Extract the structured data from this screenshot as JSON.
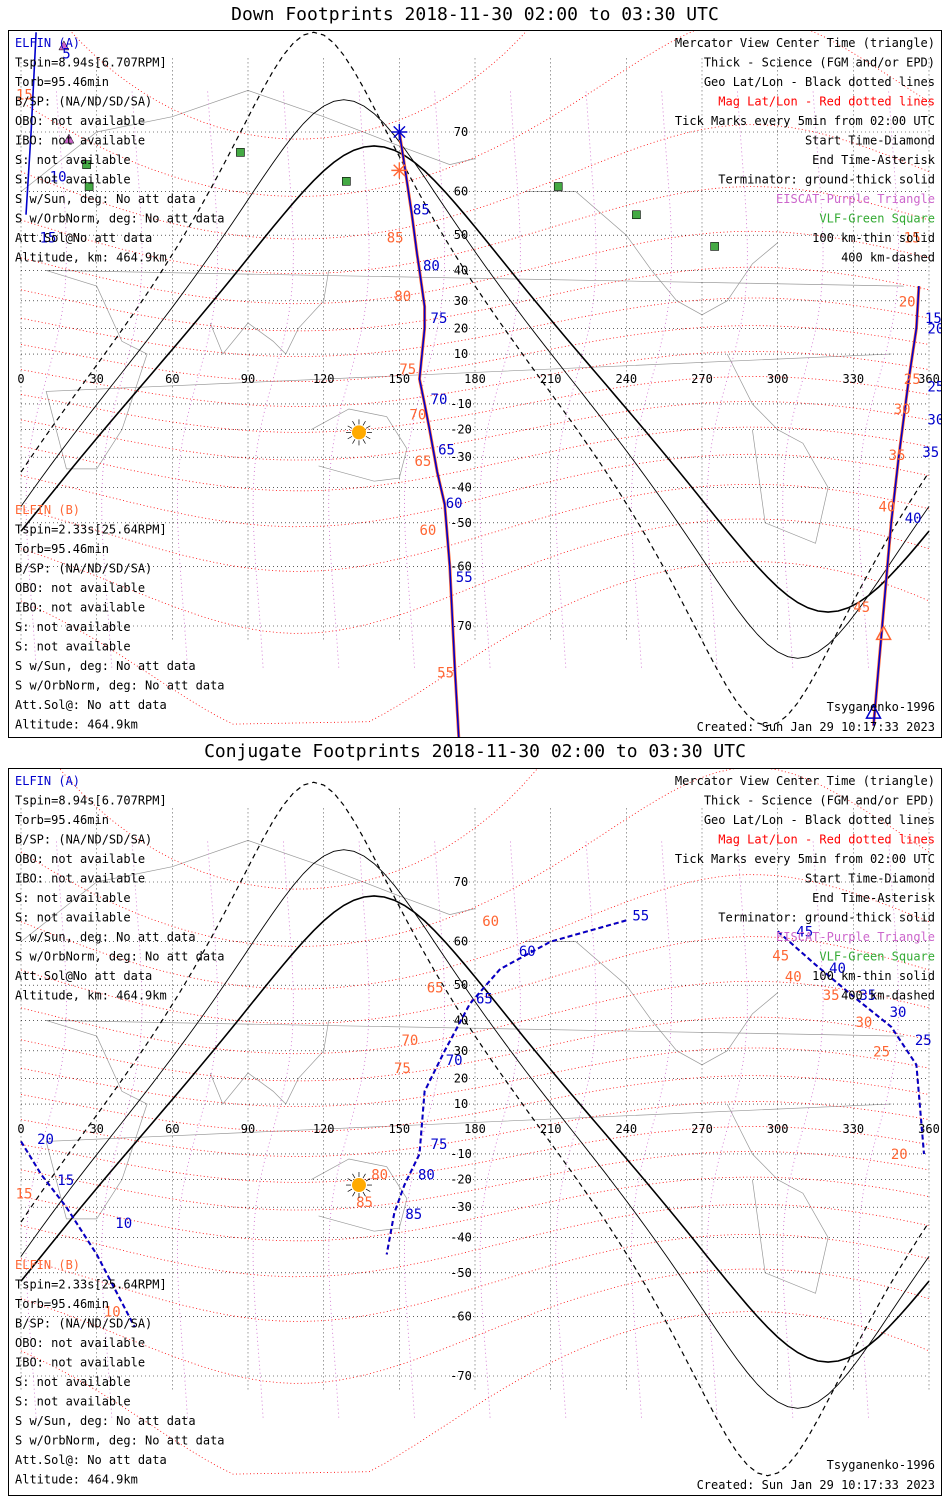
{
  "panels": [
    {
      "title": "Down Footprints 2018-11-30 02:00 to 03:30 UTC",
      "elfin_a": {
        "header": "ELFIN (A)",
        "lines": [
          "Tspin=8.94s[6.707RPM]",
          "Torb=95.46min",
          "B/SP: (NA/ND/SD/SA)",
          "OBO: not available",
          "IBO: not available",
          "S: not available",
          "S: not available",
          "S w/Sun, deg: No att data",
          "S w/OrbNorm, deg: No att data",
          "Att.Sol@No att data",
          "Altitude, km: 464.9km"
        ]
      },
      "elfin_b": {
        "header": "ELFIN (B)",
        "lines": [
          "Tspin=2.33s[25.64RPM]",
          "Torb=95.46min",
          "B/SP: (NA/ND/SD/SA)",
          "OBO: not available",
          "IBO: not available",
          "S: not available",
          "S: not available",
          "S w/Sun, deg: No att data",
          "S w/OrbNorm, deg: No att data",
          "Att.Sol@: No att data",
          "Altitude: 464.9km"
        ]
      },
      "footer_left": "Tsyganenko-1996",
      "footer_right": "Created: Sun Jan 29 10:17:33 2023"
    },
    {
      "title": "Conjugate Footprints 2018-11-30 02:00 to 03:30 UTC",
      "elfin_a": {
        "header": "ELFIN (A)",
        "lines": [
          "Tspin=8.94s[6.707RPM]",
          "Torb=95.46min",
          "B/SP: (NA/ND/SD/SA)",
          "OBO: not available",
          "IBO: not available",
          "S: not available",
          "S: not available",
          "S w/Sun, deg: No att data",
          "S w/OrbNorm, deg: No att data",
          "Att.Sol@No att data",
          "Altitude, km: 464.9km"
        ]
      },
      "elfin_b": {
        "header": "ELFIN (B)",
        "lines": [
          "Tspin=2.33s[25.64RPM]",
          "Torb=95.46min",
          "B/SP: (NA/ND/SD/SA)",
          "OBO: not available",
          "IBO: not available",
          "S: not available",
          "S: not available",
          "S w/Sun, deg: No att data",
          "S w/OrbNorm, deg: No att data",
          "Att.Sol@: No att data",
          "Altitude: 464.9km"
        ]
      },
      "footer_left": "Tsyganenko-1996",
      "footer_right": "Created: Sun Jan 29 10:17:33 2023"
    }
  ],
  "legend": [
    {
      "text": "Mercator View Center Time (triangle)",
      "color": "#000000"
    },
    {
      "text": "Thick - Science (FGM and/or EPD)",
      "color": "#000000"
    },
    {
      "text": "Geo Lat/Lon - Black dotted lines",
      "color": "#000000"
    },
    {
      "text": "Mag Lat/Lon - Red dotted lines",
      "color": "#ff0000"
    },
    {
      "text": "Tick Marks every 5min from 02:00 UTC",
      "color": "#000000"
    },
    {
      "text": "Start Time-Diamond",
      "color": "#000000"
    },
    {
      "text": "End Time-Asterisk",
      "color": "#000000"
    },
    {
      "text": "Terminator: ground-thick solid",
      "color": "#000000"
    },
    {
      "text": "EISCAT-Purple Triangle",
      "color": "#cc66cc"
    },
    {
      "text": "VLF-Green Square",
      "color": "#33aa33"
    },
    {
      "text": "100 km-thin solid",
      "color": "#000000"
    },
    {
      "text": "400 km-dashed",
      "color": "#000000"
    }
  ],
  "colors": {
    "elfin_a": "#0000cc",
    "elfin_b": "#ff6633",
    "mag": "#ff0000",
    "eiscat": "#cc66cc",
    "vlf": "#44aa44",
    "sun": "#ffaa00"
  },
  "chart_data": [
    {
      "type": "map",
      "title": "Down Footprints 2018-11-30 02:00 to 03:30 UTC",
      "projection": "mercator",
      "lon_range": [
        0,
        360
      ],
      "lat_range": [
        -80,
        80
      ],
      "lon_ticks": [
        0,
        30,
        60,
        90,
        120,
        150,
        180,
        210,
        240,
        270,
        300,
        330,
        360
      ],
      "lat_ticks": [
        70,
        60,
        50,
        40,
        30,
        20,
        10,
        -10,
        -20,
        -30,
        -40,
        -50,
        -60,
        -70
      ],
      "vlf_stations": [
        [
          87,
          67
        ],
        [
          26,
          65
        ],
        [
          27,
          61
        ],
        [
          129,
          62
        ],
        [
          213,
          61
        ],
        [
          244,
          55
        ],
        [
          275,
          47
        ]
      ],
      "eiscat_sites": [
        [
          19,
          69
        ],
        [
          17,
          79
        ]
      ],
      "sun": [
        134,
        -21
      ],
      "elfin_a_track": {
        "points": [
          [
            150,
            70
          ],
          [
            152,
            65
          ],
          [
            155,
            55
          ],
          [
            157,
            45
          ],
          [
            158,
            40
          ],
          [
            160,
            28
          ],
          [
            160,
            20
          ],
          [
            158,
            0
          ],
          [
            160,
            -10
          ],
          [
            162,
            -20
          ],
          [
            165,
            -35
          ],
          [
            168,
            -45
          ],
          [
            170,
            -60
          ],
          [
            172,
            -75
          ],
          [
            174,
            -82
          ]
        ],
        "tick_labels": [
          {
            "t": "85",
            "at": [
              153,
              55
            ]
          },
          {
            "t": "80",
            "at": [
              157,
              40
            ]
          },
          {
            "t": "75",
            "at": [
              160,
              22
            ]
          },
          {
            "t": "70",
            "at": [
              160,
              -10
            ]
          },
          {
            "t": "65",
            "at": [
              163,
              -29
            ]
          },
          {
            "t": "60",
            "at": [
              166,
              -46
            ]
          },
          {
            "t": "55",
            "at": [
              170,
              -63
            ]
          }
        ],
        "wrap_track": [
          [
            356,
            35
          ],
          [
            355,
            20
          ],
          [
            352,
            0
          ],
          [
            348,
            -30
          ],
          [
            345,
            -50
          ],
          [
            338,
            -80
          ]
        ],
        "wrap_labels": [
          {
            "t": "15",
            "at": [
              356,
              22
            ]
          },
          {
            "t": "20",
            "at": [
              357,
              18
            ]
          },
          {
            "t": "25",
            "at": [
              357,
              -5
            ]
          },
          {
            "t": "30",
            "at": [
              357,
              -18
            ]
          },
          {
            "t": "35",
            "at": [
              355,
              -30
            ]
          },
          {
            "t": "40",
            "at": [
              348,
              -50
            ]
          }
        ],
        "left_track": [
          [
            6,
            80
          ],
          [
            4,
            70
          ],
          [
            2,
            55
          ]
        ],
        "left_labels": [
          {
            "t": "5",
            "at": [
              14,
              78
            ]
          },
          {
            "t": "10",
            "at": [
              9,
              62
            ]
          },
          {
            "t": "15",
            "at": [
              5,
              48
            ]
          }
        ],
        "start": [
          170,
          82
        ],
        "end": [
          150,
          70
        ],
        "center": [
          338,
          -79
        ]
      },
      "elfin_b_labels": [
        {
          "t": "85",
          "at": [
            145,
            48
          ]
        },
        {
          "t": "80",
          "at": [
            148,
            30
          ]
        },
        {
          "t": "75",
          "at": [
            150,
            2
          ]
        },
        {
          "t": "70",
          "at": [
            154,
            -16
          ]
        },
        {
          "t": "65",
          "at": [
            156,
            -33
          ]
        },
        {
          "t": "60",
          "at": [
            158,
            -53
          ]
        },
        {
          "t": "55",
          "at": [
            165,
            -76
          ]
        },
        {
          "t": "15",
          "at": [
            350,
            48
          ]
        },
        {
          "t": "20",
          "at": [
            348,
            28
          ]
        },
        {
          "t": "25",
          "at": [
            350,
            -2
          ]
        },
        {
          "t": "30",
          "at": [
            346,
            -14
          ]
        },
        {
          "t": "35",
          "at": [
            344,
            -31
          ]
        },
        {
          "t": "40",
          "at": [
            340,
            -47
          ]
        },
        {
          "t": "45",
          "at": [
            330,
            -68
          ]
        },
        {
          "t": "15",
          "at": [
            -2,
            74
          ]
        }
      ],
      "elfin_b_end": [
        150,
        64
      ],
      "elfin_b_center": [
        342,
        -71
      ]
    },
    {
      "type": "map",
      "title": "Conjugate Footprints 2018-11-30 02:00 to 03:30 UTC",
      "projection": "mercator",
      "lon_range": [
        0,
        360
      ],
      "lat_range": [
        -80,
        80
      ],
      "lon_ticks": [
        0,
        30,
        60,
        90,
        120,
        150,
        180,
        210,
        240,
        270,
        300,
        330,
        360
      ],
      "lat_ticks": [
        70,
        60,
        50,
        40,
        30,
        20,
        10,
        -10,
        -20,
        -30,
        -40,
        -50,
        -60,
        -70
      ],
      "elfin_a_labels": [
        {
          "t": "55",
          "at": [
            240,
            64
          ]
        },
        {
          "t": "60",
          "at": [
            195,
            57
          ]
        },
        {
          "t": "65",
          "at": [
            178,
            45
          ]
        },
        {
          "t": "70",
          "at": [
            166,
            25
          ]
        },
        {
          "t": "75",
          "at": [
            160,
            -8
          ]
        },
        {
          "t": "80",
          "at": [
            155,
            -20
          ]
        },
        {
          "t": "85",
          "at": [
            150,
            -34
          ]
        },
        {
          "t": "45",
          "at": [
            305,
            61
          ]
        },
        {
          "t": "40",
          "at": [
            318,
            53
          ]
        },
        {
          "t": "35",
          "at": [
            330,
            46
          ]
        },
        {
          "t": "30",
          "at": [
            342,
            41
          ]
        },
        {
          "t": "25",
          "at": [
            352,
            32
          ]
        },
        {
          "t": "20",
          "at": [
            4,
            -6
          ]
        },
        {
          "t": "15",
          "at": [
            12,
            -22
          ]
        },
        {
          "t": "10",
          "at": [
            35,
            -37
          ]
        }
      ],
      "elfin_b_labels": [
        {
          "t": "60",
          "at": [
            190,
            63
          ]
        },
        {
          "t": "65",
          "at": [
            168,
            48
          ]
        },
        {
          "t": "70",
          "at": [
            158,
            32
          ]
        },
        {
          "t": "75",
          "at": [
            155,
            22
          ]
        },
        {
          "t": "80",
          "at": [
            146,
            -20
          ]
        },
        {
          "t": "85",
          "at": [
            140,
            -30
          ]
        },
        {
          "t": "45",
          "at": [
            305,
            56
          ]
        },
        {
          "t": "40",
          "at": [
            310,
            51
          ]
        },
        {
          "t": "35",
          "at": [
            325,
            46
          ]
        },
        {
          "t": "30",
          "at": [
            338,
            38
          ]
        },
        {
          "t": "25",
          "at": [
            345,
            28
          ]
        },
        {
          "t": "20",
          "at": [
            352,
            -12
          ]
        },
        {
          "t": "15",
          "at": [
            5,
            -27
          ]
        },
        {
          "t": "10",
          "at": [
            40,
            -60
          ]
        }
      ]
    }
  ]
}
